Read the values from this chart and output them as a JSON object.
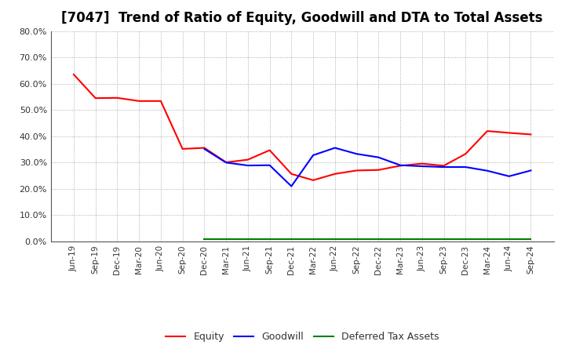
{
  "title": "[7047]  Trend of Ratio of Equity, Goodwill and DTA to Total Assets",
  "x_labels": [
    "Jun-19",
    "Sep-19",
    "Dec-19",
    "Mar-20",
    "Jun-20",
    "Sep-20",
    "Dec-20",
    "Mar-21",
    "Jun-21",
    "Sep-21",
    "Dec-21",
    "Mar-22",
    "Jun-22",
    "Sep-22",
    "Dec-22",
    "Mar-23",
    "Jun-23",
    "Sep-23",
    "Dec-23",
    "Mar-24",
    "Jun-24",
    "Sep-24"
  ],
  "equity": [
    0.635,
    0.545,
    0.546,
    0.534,
    0.534,
    0.352,
    0.356,
    0.301,
    0.311,
    0.347,
    0.257,
    0.233,
    0.257,
    0.27,
    0.272,
    0.288,
    0.296,
    0.288,
    0.333,
    0.42,
    0.413,
    0.407
  ],
  "goodwill": [
    null,
    null,
    null,
    null,
    null,
    null,
    0.352,
    0.3,
    0.289,
    0.29,
    0.21,
    0.328,
    0.356,
    0.333,
    0.32,
    0.29,
    0.286,
    0.283,
    0.283,
    0.269,
    0.248,
    0.27
  ],
  "dta": [
    null,
    null,
    null,
    null,
    null,
    null,
    0.01,
    0.01,
    0.01,
    0.01,
    0.01,
    0.01,
    0.01,
    0.01,
    0.01,
    0.01,
    0.01,
    0.01,
    0.01,
    0.01,
    0.01,
    0.01
  ],
  "equity_color": "#ff0000",
  "goodwill_color": "#0000ff",
  "dta_color": "#008000",
  "ylim": [
    0.0,
    0.8
  ],
  "yticks": [
    0.0,
    0.1,
    0.2,
    0.3,
    0.4,
    0.5,
    0.6,
    0.7,
    0.8
  ],
  "bg_color": "#ffffff",
  "grid_color": "#999999",
  "title_fontsize": 12,
  "legend_labels": [
    "Equity",
    "Goodwill",
    "Deferred Tax Assets"
  ]
}
